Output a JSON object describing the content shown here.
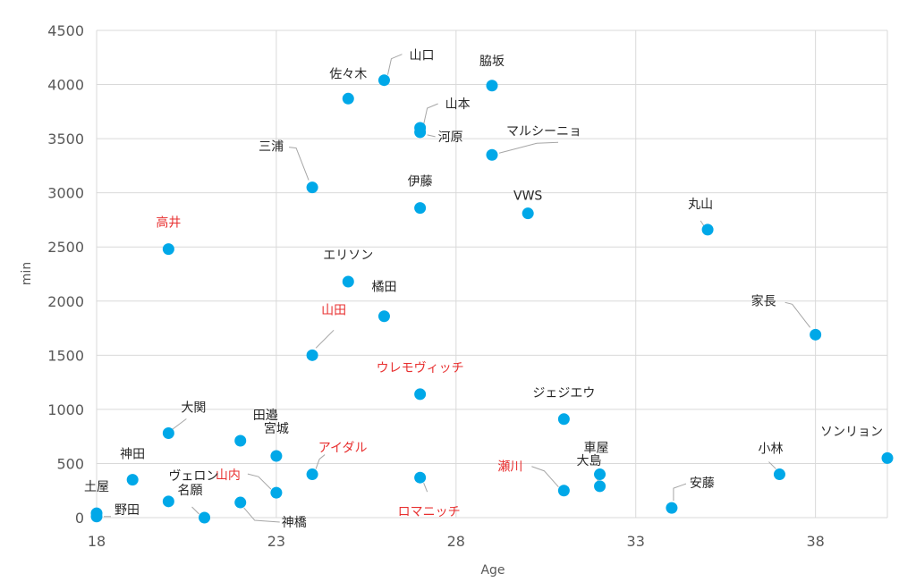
{
  "chart_data": {
    "type": "scatter",
    "xlabel": "Age",
    "ylabel": "min",
    "xlim": [
      18,
      40
    ],
    "ylim": [
      0,
      4500
    ],
    "x_ticks": [
      18,
      23,
      28,
      33,
      38
    ],
    "y_ticks": [
      0,
      500,
      1000,
      1500,
      2000,
      2500,
      3000,
      3500,
      4000,
      4500
    ],
    "grid": true,
    "colors": {
      "marker": "#00a8e8",
      "highlight": "#e83030",
      "label": "#262626",
      "axis": "#595959"
    },
    "points": [
      {
        "label": "山口",
        "x": 26,
        "y": 4040,
        "highlight": false
      },
      {
        "label": "佐々木",
        "x": 25,
        "y": 3870,
        "highlight": false
      },
      {
        "label": "脇坂",
        "x": 29,
        "y": 3990,
        "highlight": false
      },
      {
        "label": "山本",
        "x": 27,
        "y": 3600,
        "highlight": false
      },
      {
        "label": "河原",
        "x": 27,
        "y": 3560,
        "highlight": false
      },
      {
        "label": "マルシーニョ",
        "x": 29,
        "y": 3350,
        "highlight": false
      },
      {
        "label": "三浦",
        "x": 24,
        "y": 3050,
        "highlight": false
      },
      {
        "label": "伊藤",
        "x": 27,
        "y": 2860,
        "highlight": false
      },
      {
        "label": "VWS",
        "x": 30,
        "y": 2810,
        "highlight": false
      },
      {
        "label": "丸山",
        "x": 35,
        "y": 2660,
        "highlight": false
      },
      {
        "label": "高井",
        "x": 20,
        "y": 2480,
        "highlight": true
      },
      {
        "label": "エリソン",
        "x": 25,
        "y": 2180,
        "highlight": false
      },
      {
        "label": "橘田",
        "x": 26,
        "y": 1860,
        "highlight": false
      },
      {
        "label": "家長",
        "x": 38,
        "y": 1690,
        "highlight": false
      },
      {
        "label": "山田",
        "x": 24,
        "y": 1500,
        "highlight": true
      },
      {
        "label": "ウレモヴィッチ",
        "x": 27,
        "y": 1140,
        "highlight": true
      },
      {
        "label": "ジェジエウ",
        "x": 31,
        "y": 910,
        "highlight": false
      },
      {
        "label": "大関",
        "x": 20,
        "y": 780,
        "highlight": false
      },
      {
        "label": "田邉",
        "x": 22,
        "y": 710,
        "highlight": false
      },
      {
        "label": "宮城",
        "x": 23,
        "y": 570,
        "highlight": false
      },
      {
        "label": "アイダル",
        "x": 24,
        "y": 400,
        "highlight": true
      },
      {
        "label": "車屋",
        "x": 32,
        "y": 400,
        "highlight": false
      },
      {
        "label": "大島",
        "x": 32,
        "y": 290,
        "highlight": false
      },
      {
        "label": "小林",
        "x": 37,
        "y": 400,
        "highlight": false
      },
      {
        "label": "ソンリョン",
        "x": 40,
        "y": 550,
        "highlight": false
      },
      {
        "label": "神田",
        "x": 19,
        "y": 350,
        "highlight": false
      },
      {
        "label": "ロマニッチ",
        "x": 27,
        "y": 370,
        "highlight": true
      },
      {
        "label": "瀬川",
        "x": 31,
        "y": 250,
        "highlight": true
      },
      {
        "label": "山内",
        "x": 23,
        "y": 230,
        "highlight": true
      },
      {
        "label": "ヴェロン",
        "x": 20,
        "y": 150,
        "highlight": false
      },
      {
        "label": "神橋",
        "x": 22,
        "y": 140,
        "highlight": false
      },
      {
        "label": "安藤",
        "x": 34,
        "y": 90,
        "highlight": false
      },
      {
        "label": "土屋",
        "x": 18,
        "y": 40,
        "highlight": false
      },
      {
        "label": "野田",
        "x": 18,
        "y": 10,
        "highlight": false
      },
      {
        "label": "名願",
        "x": 21,
        "y": 0,
        "highlight": false
      }
    ]
  }
}
